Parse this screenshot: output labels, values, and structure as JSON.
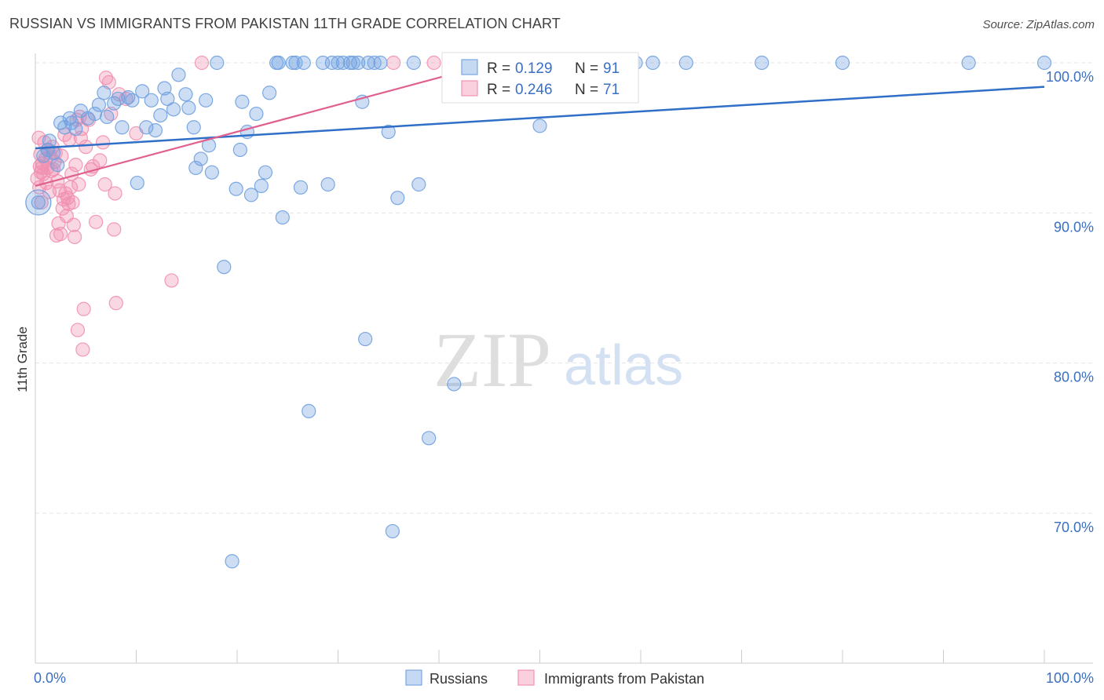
{
  "title": "RUSSIAN VS IMMIGRANTS FROM PAKISTAN 11TH GRADE CORRELATION CHART",
  "source": "Source: ZipAtlas.com",
  "watermark": {
    "zip": "ZIP",
    "atlas": "atlas"
  },
  "colors": {
    "blue": "#6fa0e0",
    "blue_line": "#2f6fc8",
    "pink": "#f28fb0",
    "pink_line": "#e0608f",
    "axis_text": "#3a6fc4",
    "grid": "#e4e4e4"
  },
  "legend": {
    "rows": [
      {
        "r_label": "R =",
        "r_value": "0.129",
        "n_label": "N =",
        "n_value": "91",
        "series": "blue"
      },
      {
        "r_label": "R =",
        "r_value": "0.246",
        "n_label": "N =",
        "n_value": "71",
        "series": "pink"
      }
    ]
  },
  "chart_data": {
    "type": "scatter",
    "title": "RUSSIAN VS IMMIGRANTS FROM PAKISTAN 11TH GRADE CORRELATION CHART",
    "xlabel": "",
    "ylabel": "11th Grade",
    "xlim": [
      0,
      100
    ],
    "ylim": [
      61,
      101
    ],
    "x_tick_labels": [
      "0.0%",
      "100.0%"
    ],
    "y_ticks": [
      {
        "value": 70,
        "label": "70.0%"
      },
      {
        "value": 80,
        "label": "80.0%"
      },
      {
        "value": 90,
        "label": "90.0%"
      },
      {
        "value": 100,
        "label": "100.0%"
      }
    ],
    "grid": true,
    "series": [
      {
        "name": "Russians",
        "color": "#6fa0e0",
        "r": 0.129,
        "n": 91,
        "trend": {
          "x": [
            0,
            100
          ],
          "y": [
            94.3,
            98.4
          ]
        },
        "points": [
          [
            0.3,
            90.7
          ],
          [
            0.8,
            93.8
          ],
          [
            1.2,
            94.2
          ],
          [
            1.4,
            94.8
          ],
          [
            1.8,
            94.0
          ],
          [
            2.2,
            93.2
          ],
          [
            2.5,
            96.0
          ],
          [
            2.9,
            95.7
          ],
          [
            3.4,
            96.3
          ],
          [
            3.6,
            96.0
          ],
          [
            4.0,
            95.6
          ],
          [
            4.5,
            96.8
          ],
          [
            5.2,
            96.3
          ],
          [
            5.9,
            96.6
          ],
          [
            6.3,
            97.2
          ],
          [
            6.8,
            98.0
          ],
          [
            7.1,
            96.4
          ],
          [
            7.8,
            97.3
          ],
          [
            8.2,
            97.6
          ],
          [
            8.6,
            95.7
          ],
          [
            9.2,
            97.7
          ],
          [
            9.6,
            97.5
          ],
          [
            10.1,
            92.0
          ],
          [
            10.6,
            98.1
          ],
          [
            11.0,
            95.7
          ],
          [
            11.5,
            97.5
          ],
          [
            11.9,
            95.5
          ],
          [
            12.4,
            96.5
          ],
          [
            12.8,
            98.3
          ],
          [
            13.1,
            97.6
          ],
          [
            13.7,
            96.9
          ],
          [
            14.2,
            99.2
          ],
          [
            14.9,
            97.9
          ],
          [
            15.2,
            97.0
          ],
          [
            15.7,
            95.7
          ],
          [
            15.9,
            93.0
          ],
          [
            16.4,
            93.6
          ],
          [
            16.9,
            97.5
          ],
          [
            17.2,
            94.5
          ],
          [
            17.5,
            92.7
          ],
          [
            18.0,
            100.0
          ],
          [
            18.7,
            86.4
          ],
          [
            19.5,
            66.8
          ],
          [
            19.9,
            91.6
          ],
          [
            20.3,
            94.2
          ],
          [
            20.5,
            97.4
          ],
          [
            21.0,
            95.4
          ],
          [
            21.4,
            91.2
          ],
          [
            21.9,
            96.6
          ],
          [
            22.4,
            91.8
          ],
          [
            22.8,
            92.7
          ],
          [
            23.2,
            98.0
          ],
          [
            23.9,
            100.0
          ],
          [
            24.1,
            100.0
          ],
          [
            24.5,
            89.7
          ],
          [
            25.5,
            100.0
          ],
          [
            25.8,
            100.0
          ],
          [
            26.3,
            91.7
          ],
          [
            26.6,
            100.0
          ],
          [
            27.1,
            76.8
          ],
          [
            28.5,
            100.0
          ],
          [
            29.0,
            91.9
          ],
          [
            29.4,
            100.0
          ],
          [
            30.0,
            100.0
          ],
          [
            30.5,
            100.0
          ],
          [
            31.2,
            100.0
          ],
          [
            31.5,
            100.0
          ],
          [
            32.0,
            100.0
          ],
          [
            32.4,
            97.4
          ],
          [
            32.7,
            81.6
          ],
          [
            33.0,
            100.0
          ],
          [
            33.6,
            100.0
          ],
          [
            34.2,
            100.0
          ],
          [
            35.0,
            95.4
          ],
          [
            35.4,
            68.8
          ],
          [
            35.9,
            91.0
          ],
          [
            37.5,
            100.0
          ],
          [
            38.0,
            91.9
          ],
          [
            39.0,
            75.0
          ],
          [
            41.0,
            100.0
          ],
          [
            41.5,
            78.6
          ],
          [
            47.0,
            100.0
          ],
          [
            50.0,
            95.8
          ],
          [
            53.0,
            100.0
          ],
          [
            55.0,
            100.0
          ],
          [
            59.5,
            100.0
          ],
          [
            61.2,
            100.0
          ],
          [
            64.5,
            100.0
          ],
          [
            72.0,
            100.0
          ],
          [
            80.0,
            100.0
          ],
          [
            92.5,
            100.0
          ],
          [
            100.0,
            100.0
          ]
        ]
      },
      {
        "name": "Immigrants from Pakistan",
        "color": "#f28fb0",
        "r": 0.246,
        "n": 71,
        "trend": {
          "x": [
            0,
            40.5
          ],
          "y": [
            91.8,
            99.1
          ]
        },
        "points": [
          [
            0.2,
            92.3
          ],
          [
            0.4,
            91.7
          ],
          [
            0.5,
            93.9
          ],
          [
            0.6,
            90.7
          ],
          [
            0.7,
            93.3
          ],
          [
            0.8,
            92.6
          ],
          [
            0.9,
            94.7
          ],
          [
            1.0,
            93.6
          ],
          [
            1.1,
            92.0
          ],
          [
            1.2,
            93.0
          ],
          [
            1.3,
            94.2
          ],
          [
            1.4,
            91.4
          ],
          [
            1.5,
            93.7
          ],
          [
            1.6,
            92.8
          ],
          [
            1.7,
            94.4
          ],
          [
            1.8,
            92.9
          ],
          [
            1.9,
            93.4
          ],
          [
            2.0,
            94.0
          ],
          [
            2.1,
            88.5
          ],
          [
            2.2,
            92.1
          ],
          [
            2.3,
            89.3
          ],
          [
            2.4,
            91.5
          ],
          [
            2.5,
            88.6
          ],
          [
            2.6,
            93.8
          ],
          [
            2.7,
            90.3
          ],
          [
            2.8,
            90.9
          ],
          [
            2.9,
            95.2
          ],
          [
            3.0,
            91.3
          ],
          [
            3.1,
            89.8
          ],
          [
            3.2,
            91.0
          ],
          [
            3.3,
            90.6
          ],
          [
            3.4,
            94.9
          ],
          [
            3.5,
            91.7
          ],
          [
            3.6,
            92.6
          ],
          [
            3.7,
            90.7
          ],
          [
            3.8,
            89.2
          ],
          [
            3.9,
            88.4
          ],
          [
            4.0,
            93.2
          ],
          [
            4.1,
            96.2
          ],
          [
            4.2,
            82.2
          ],
          [
            4.3,
            91.9
          ],
          [
            4.4,
            96.4
          ],
          [
            4.5,
            95.0
          ],
          [
            4.6,
            95.6
          ],
          [
            4.7,
            80.9
          ],
          [
            4.8,
            83.6
          ],
          [
            5.0,
            94.4
          ],
          [
            5.3,
            96.2
          ],
          [
            5.5,
            92.9
          ],
          [
            5.7,
            93.1
          ],
          [
            6.0,
            89.4
          ],
          [
            6.4,
            93.5
          ],
          [
            6.7,
            94.7
          ],
          [
            6.9,
            91.9
          ],
          [
            7.0,
            99.0
          ],
          [
            7.3,
            98.7
          ],
          [
            7.5,
            96.6
          ],
          [
            7.8,
            88.9
          ],
          [
            7.9,
            91.3
          ],
          [
            8.0,
            84.0
          ],
          [
            8.3,
            97.9
          ],
          [
            9.0,
            97.6
          ],
          [
            10.0,
            95.3
          ],
          [
            13.5,
            85.5
          ],
          [
            16.5,
            100.0
          ],
          [
            35.5,
            100.0
          ],
          [
            39.5,
            100.0
          ],
          [
            0.35,
            95.0
          ],
          [
            0.45,
            93.1
          ],
          [
            0.55,
            92.7
          ],
          [
            0.65,
            93.0
          ]
        ]
      }
    ]
  },
  "bottom_legend": [
    {
      "label": "Russians",
      "series": "blue"
    },
    {
      "label": "Immigrants from Pakistan",
      "series": "pink"
    }
  ]
}
